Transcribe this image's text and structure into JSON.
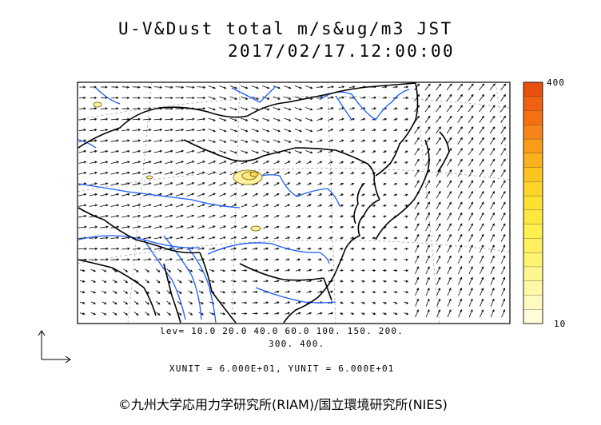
{
  "title": {
    "line1": "U-V&Dust total m/s&ug/m3 JST",
    "line2": "2017/02/17.12:00:00"
  },
  "levels": {
    "line1": "lev= 10.0 20.0 40.0 60.0 100. 150. 200.",
    "line2": "300. 400."
  },
  "units_text": "XUNIT = 6.000E+01, YUNIT = 6.000E+01",
  "colorbar": {
    "max_label": "400",
    "min_label": "10",
    "colors": [
      "#e85010",
      "#f06010",
      "#f47010",
      "#f78418",
      "#f99c18",
      "#fbb020",
      "#fcc420",
      "#fdd428",
      "#fde030",
      "#fee840",
      "#fef050",
      "#fff060",
      "#fff470",
      "#fff690",
      "#fff8a8",
      "#fffac0",
      "#fffcd8"
    ]
  },
  "copyright": "©九州大学応用力学研究所(RIAM)/国立環境研究所(NIES)",
  "colors": {
    "coastline": "#000000",
    "rivers": "#1a5cff",
    "wind_vectors": "#000000",
    "dust_fill": "#fff2a0",
    "dust_contour": "#706000"
  }
}
